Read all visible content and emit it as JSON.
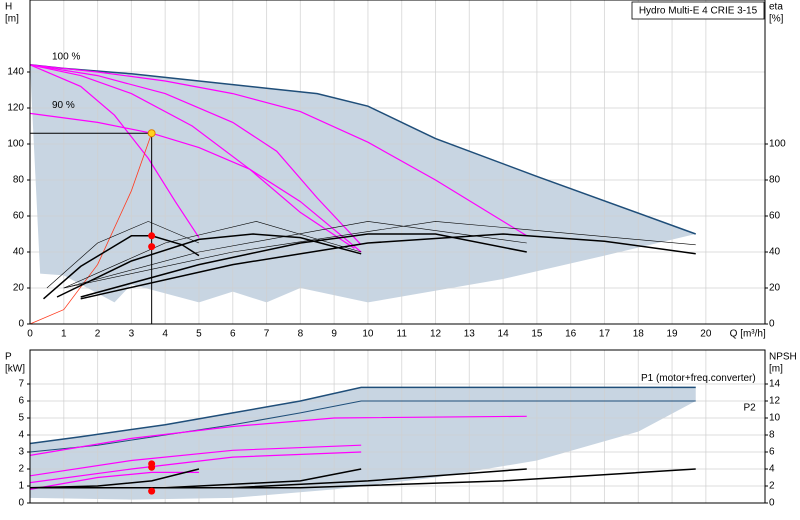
{
  "title": "Hydro Multi-E 4 CRIE 3-15",
  "chart_data": [
    {
      "type": "line",
      "ylabel": [
        "H",
        "[m]"
      ],
      "y2label": [
        "eta",
        "[%]"
      ],
      "xlabel": "Q [m³/h]",
      "xlim": [
        0,
        21.75
      ],
      "ylim": [
        0,
        180
      ],
      "y2lim": [
        0,
        180
      ],
      "xticks": [
        0,
        1,
        2,
        3,
        4,
        5,
        6,
        7,
        8,
        9,
        10,
        11,
        12,
        13,
        14,
        15,
        16,
        17,
        18,
        19,
        20
      ],
      "yticks": [
        0,
        20,
        40,
        60,
        80,
        100,
        120,
        140
      ],
      "y2ticks": [
        0,
        20,
        40,
        60,
        80,
        100
      ],
      "grid": true,
      "series": [
        {
          "color": "#1f4e79",
          "fill": "#c8d5e2",
          "width": 1.5,
          "x": [
            0,
            1,
            3,
            5,
            7,
            8.5,
            10,
            12,
            15,
            19.7
          ],
          "values": [
            144,
            142,
            139,
            135,
            131,
            128,
            121,
            103,
            82,
            50
          ]
        },
        {
          "fill": "#c8d5e2",
          "x": [
            0.3,
            1,
            2.5,
            3,
            5,
            6,
            7,
            8,
            10,
            14,
            17,
            19.7
          ],
          "values": [
            28,
            27,
            12,
            22,
            12,
            18,
            12,
            20,
            12,
            25,
            38,
            50
          ]
        },
        {
          "name": "100 %",
          "color": "#ff00ff",
          "width": 1.2,
          "x": [
            0,
            2,
            4,
            6,
            8,
            10,
            12,
            14.7
          ],
          "values": [
            144,
            140,
            135,
            128,
            118,
            101,
            80,
            49
          ]
        },
        {
          "color": "#ff00ff",
          "width": 1.2,
          "x": [
            0,
            2,
            4,
            6,
            7.3,
            8.5,
            9.8
          ],
          "values": [
            144,
            138,
            128,
            112,
            96,
            70,
            44
          ]
        },
        {
          "color": "#ff00ff",
          "width": 1.2,
          "x": [
            0,
            1.5,
            3,
            4.8,
            6.5,
            8,
            9.6
          ],
          "values": [
            144,
            138,
            128,
            110,
            86,
            62,
            42
          ]
        },
        {
          "name": "90 %",
          "color": "#ff00ff",
          "width": 1.2,
          "x": [
            0,
            2,
            3.6,
            5,
            6.5,
            8,
            9.8
          ],
          "values": [
            117,
            112,
            106,
            98,
            86,
            68,
            40
          ]
        },
        {
          "color": "#ff00ff",
          "width": 1.2,
          "x": [
            0,
            1.5,
            2.5,
            3.5,
            4.3,
            5
          ],
          "values": [
            144,
            132,
            116,
            92,
            68,
            48
          ]
        },
        {
          "color": "#ff3b1f",
          "width": 0.8,
          "x": [
            0,
            1,
            2,
            3,
            3.6
          ],
          "values": [
            0,
            8,
            33,
            74,
            106
          ]
        },
        {
          "color": "#000000",
          "width": 1.5,
          "axis": "y2",
          "x": [
            0.4,
            1.5,
            3,
            3.6,
            4.5,
            5
          ],
          "values": [
            14,
            32,
            49,
            49,
            44,
            38
          ]
        },
        {
          "color": "#000000",
          "width": 1.5,
          "axis": "y2",
          "x": [
            0.8,
            3,
            5,
            6.6,
            8,
            9.8
          ],
          "values": [
            15,
            35,
            47,
            50,
            48,
            39
          ]
        },
        {
          "color": "#000000",
          "width": 1.5,
          "axis": "y2",
          "x": [
            1.5,
            5,
            8,
            10,
            12,
            14.7
          ],
          "values": [
            15,
            33,
            45,
            50,
            50,
            40
          ]
        },
        {
          "color": "#000000",
          "width": 1.5,
          "axis": "y2",
          "x": [
            1.5,
            6,
            10,
            14,
            17,
            19.7
          ],
          "values": [
            14,
            33,
            45,
            50,
            46,
            39
          ]
        },
        {
          "color": "#000000",
          "width": 0.6,
          "axis": "y2",
          "x": [
            0.5,
            2,
            3.5,
            5
          ],
          "values": [
            20,
            45,
            57,
            45
          ]
        },
        {
          "color": "#000000",
          "width": 0.6,
          "axis": "y2",
          "x": [
            1,
            4,
            6.7,
            9.8
          ],
          "values": [
            20,
            45,
            57,
            40
          ]
        },
        {
          "color": "#000000",
          "width": 0.6,
          "axis": "y2",
          "x": [
            1,
            5,
            10,
            14.7
          ],
          "values": [
            20,
            40,
            57,
            45
          ]
        },
        {
          "color": "#000000",
          "width": 0.6,
          "axis": "y2",
          "x": [
            1,
            6,
            12,
            19.7
          ],
          "values": [
            20,
            40,
            57,
            44
          ]
        }
      ],
      "points": [
        {
          "x": 3.6,
          "value": 106,
          "color": "#ffd21f",
          "guide": true
        },
        {
          "x": 3.6,
          "value": 49,
          "color": "#ff0000",
          "axis": "y2"
        },
        {
          "x": 3.6,
          "value": 43,
          "color": "#ff0000",
          "axis": "y2"
        }
      ]
    },
    {
      "type": "line",
      "ylabel": [
        "P",
        "[kW]"
      ],
      "y2label": [
        "NPSH",
        "[m]"
      ],
      "xlim": [
        0,
        21.75
      ],
      "ylim": [
        0,
        9
      ],
      "y2lim": [
        0,
        18
      ],
      "yticks": [
        0,
        1,
        2,
        3,
        4,
        5,
        6,
        7
      ],
      "y2ticks": [
        0,
        2,
        4,
        6,
        8,
        10,
        12,
        14
      ],
      "grid": true,
      "series": [
        {
          "name": "P1 (motor+freq.converter)",
          "color": "#1f4e79",
          "fill": "#c8d5e2",
          "width": 1.5,
          "x": [
            0,
            1.5,
            4,
            6,
            8,
            9.8,
            14,
            19.7
          ],
          "values": [
            3.5,
            3.9,
            4.6,
            5.3,
            6.0,
            6.8,
            6.8,
            6.8
          ]
        },
        {
          "fill": "#c8d5e2",
          "x": [
            0,
            3,
            6,
            9,
            12,
            15,
            18,
            19.7
          ],
          "values": [
            0.3,
            0.2,
            0.3,
            0.8,
            1.5,
            2.5,
            4.2,
            6.0
          ]
        },
        {
          "name": "P2",
          "color": "#1f4e79",
          "width": 1,
          "x": [
            0,
            2,
            4,
            6,
            8,
            9.8,
            14,
            19.7
          ],
          "values": [
            3.0,
            3.4,
            4.0,
            4.6,
            5.3,
            6.0,
            6.0,
            6.0
          ]
        },
        {
          "color": "#ff00ff",
          "width": 1.2,
          "x": [
            0,
            3,
            6,
            9,
            14.7
          ],
          "values": [
            2.8,
            3.8,
            4.5,
            5.0,
            5.1
          ]
        },
        {
          "color": "#ff00ff",
          "width": 1.2,
          "x": [
            0,
            3,
            6,
            9.8
          ],
          "values": [
            1.6,
            2.5,
            3.1,
            3.4
          ]
        },
        {
          "color": "#ff00ff",
          "width": 1.2,
          "x": [
            0,
            3,
            6,
            9.8
          ],
          "values": [
            1.2,
            2.0,
            2.7,
            3.0
          ]
        },
        {
          "color": "#ff00ff",
          "width": 1.2,
          "x": [
            0,
            2,
            3.6,
            5
          ],
          "values": [
            0.8,
            1.5,
            1.8,
            1.8
          ]
        },
        {
          "color": "#000000",
          "width": 1.5,
          "axis": "y2",
          "x": [
            0,
            2,
            3.6,
            5
          ],
          "values": [
            1.8,
            2.0,
            2.6,
            4.0
          ]
        },
        {
          "color": "#000000",
          "width": 1.5,
          "axis": "y2",
          "x": [
            0,
            4,
            8,
            9.8
          ],
          "values": [
            1.8,
            1.8,
            2.6,
            4.0
          ]
        },
        {
          "color": "#000000",
          "width": 1.5,
          "axis": "y2",
          "x": [
            0,
            6,
            10,
            14.7
          ],
          "values": [
            1.8,
            1.8,
            2.6,
            4.0
          ]
        },
        {
          "color": "#000000",
          "width": 1.5,
          "axis": "y2",
          "x": [
            0,
            8,
            14,
            19.7
          ],
          "values": [
            1.8,
            1.8,
            2.6,
            4.0
          ]
        }
      ],
      "points": [
        {
          "x": 3.6,
          "value": 2.3,
          "color": "#ff0000"
        },
        {
          "x": 3.6,
          "value": 2.1,
          "color": "#ff0000"
        },
        {
          "x": 3.6,
          "value": 1.4,
          "color": "#ff0000",
          "axis": "y2"
        }
      ]
    }
  ]
}
